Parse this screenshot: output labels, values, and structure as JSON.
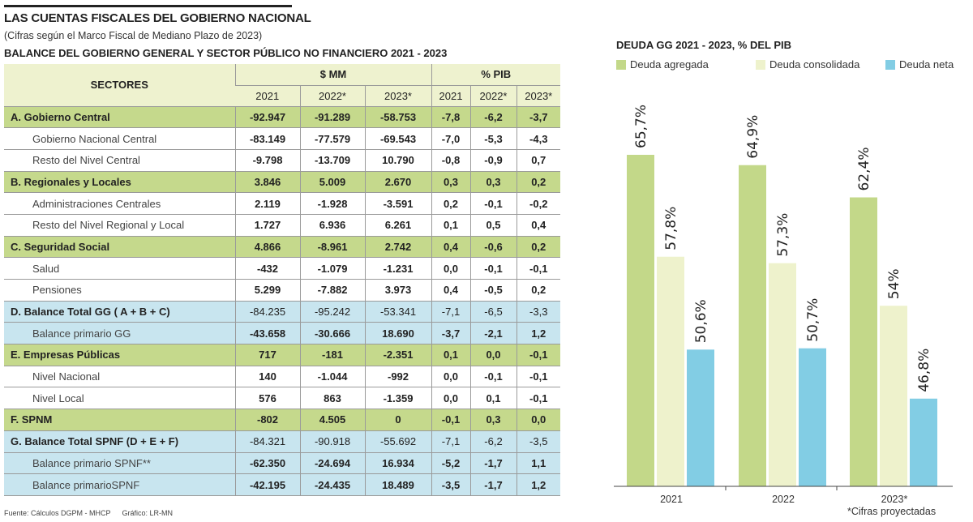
{
  "header": {
    "title": "LAS CUENTAS FISCALES DEL GOBIERNO NACIONAL",
    "subtitle": "(Cifras según el Marco Fiscal de Mediano Plazo de 2023)"
  },
  "table": {
    "title": "BALANCE DEL GOBIERNO GENERAL Y SECTOR PÚBLICO NO FINANCIERO 2021 - 2023",
    "col_sectores": "SECTORES",
    "group_mm": "$ MM",
    "group_pib": "% PIB",
    "years": [
      "2021",
      "2022*",
      "2023*",
      "2021",
      "2022*",
      "2023*"
    ],
    "rows": [
      {
        "type": "sec",
        "cells": [
          "A. Gobierno Central",
          "-92.947",
          "-91.289",
          "-58.753",
          "-7,8",
          "-6,2",
          "-3,7"
        ]
      },
      {
        "type": "sub",
        "cells": [
          "Gobierno Nacional Central",
          "-83.149",
          "-77.579",
          "-69.543",
          "-7,0",
          "-5,3",
          "-4,3"
        ]
      },
      {
        "type": "sub",
        "cells": [
          "Resto del Nivel Central",
          "-9.798",
          "-13.709",
          "10.790",
          "-0,8",
          "-0,9",
          "0,7"
        ]
      },
      {
        "type": "sec",
        "cells": [
          "B. Regionales y Locales",
          "3.846",
          "5.009",
          "2.670",
          "0,3",
          "0,3",
          "0,2"
        ]
      },
      {
        "type": "sub",
        "cells": [
          "Administraciones Centrales",
          "2.119",
          "-1.928",
          "-3.591",
          "0,2",
          "-0,1",
          "-0,2"
        ]
      },
      {
        "type": "sub",
        "cells": [
          "Resto del Nivel Regional y Local",
          "1.727",
          "6.936",
          "6.261",
          "0,1",
          "0,5",
          "0,4"
        ]
      },
      {
        "type": "sec",
        "cells": [
          "C. Seguridad Social",
          "4.866",
          "-8.961",
          "2.742",
          "0,4",
          "-0,6",
          "0,2"
        ]
      },
      {
        "type": "sub",
        "cells": [
          "Salud",
          "-432",
          "-1.079",
          "-1.231",
          "0,0",
          "-0,1",
          "-0,1"
        ]
      },
      {
        "type": "sub",
        "cells": [
          "Pensiones",
          "5.299",
          "-7.882",
          "3.973",
          "0,4",
          "-0,5",
          "0,2"
        ]
      },
      {
        "type": "blue",
        "cells": [
          "D. Balance Total GG  ( A + B + C)",
          "-84.235",
          "-95.242",
          "-53.341",
          "-7,1",
          "-6,5",
          "-3,3"
        ]
      },
      {
        "type": "bluesub",
        "cells": [
          "Balance primario GG",
          "-43.658",
          "-30.666",
          "18.690",
          "-3,7",
          "-2,1",
          "1,2"
        ]
      },
      {
        "type": "sec",
        "cells": [
          "E. Empresas Públicas",
          "717",
          "-181",
          "-2.351",
          "0,1",
          "0,0",
          "-0,1"
        ]
      },
      {
        "type": "sub",
        "cells": [
          "Nivel Nacional",
          "140",
          "-1.044",
          "-992",
          "0,0",
          "-0,1",
          "-0,1"
        ]
      },
      {
        "type": "sub",
        "cells": [
          "Nivel Local",
          "576",
          "863",
          "-1.359",
          "0,0",
          "0,1",
          "-0,1"
        ]
      },
      {
        "type": "sec",
        "cells": [
          "F. SPNM",
          "-802",
          "4.505",
          "0",
          "-0,1",
          "0,3",
          "0,0"
        ]
      },
      {
        "type": "blue",
        "cells": [
          "G. Balance Total SPNF (D + E + F)",
          "-84.321",
          "-90.918",
          "-55.692",
          "-7,1",
          "-6,2",
          "-3,5"
        ]
      },
      {
        "type": "bluesub",
        "cells": [
          "Balance primario SPNF**",
          "-62.350",
          "-24.694",
          "16.934",
          "-5,2",
          "-1,7",
          "1,1"
        ]
      },
      {
        "type": "bluesub",
        "cells": [
          "Balance primarioSPNF",
          "-42.195",
          "-24.435",
          "18.489",
          "-3,5",
          "-1,7",
          "1,2"
        ]
      }
    ]
  },
  "footer": {
    "source": "Fuente: Cálculos DGPM - MHCP",
    "credit": "Gráfico: LR-MN"
  },
  "chart_data": {
    "type": "bar",
    "title": "DEUDA GG 2021 - 2023, % DEL PIB",
    "categories": [
      "2021",
      "2022",
      "2023*"
    ],
    "ylim": [
      40,
      70
    ],
    "grid": false,
    "legend": "top",
    "series": [
      {
        "name": "Deuda agregada",
        "color": "#c3d889",
        "values": [
          65.7,
          64.9,
          62.4
        ],
        "labels": [
          "65,7%",
          "64,9%",
          "62,4%"
        ]
      },
      {
        "name": "Deuda consolidada",
        "color": "#eef2cc",
        "values": [
          57.8,
          57.3,
          54
        ],
        "labels": [
          "57,8%",
          "57,3%",
          "54%"
        ]
      },
      {
        "name": "Deuda neta",
        "color": "#82cde4",
        "values": [
          50.6,
          50.7,
          46.8
        ],
        "labels": [
          "50,6%",
          "50,7%",
          "46,8%"
        ]
      }
    ],
    "note": "*Cifras proyectadas"
  }
}
